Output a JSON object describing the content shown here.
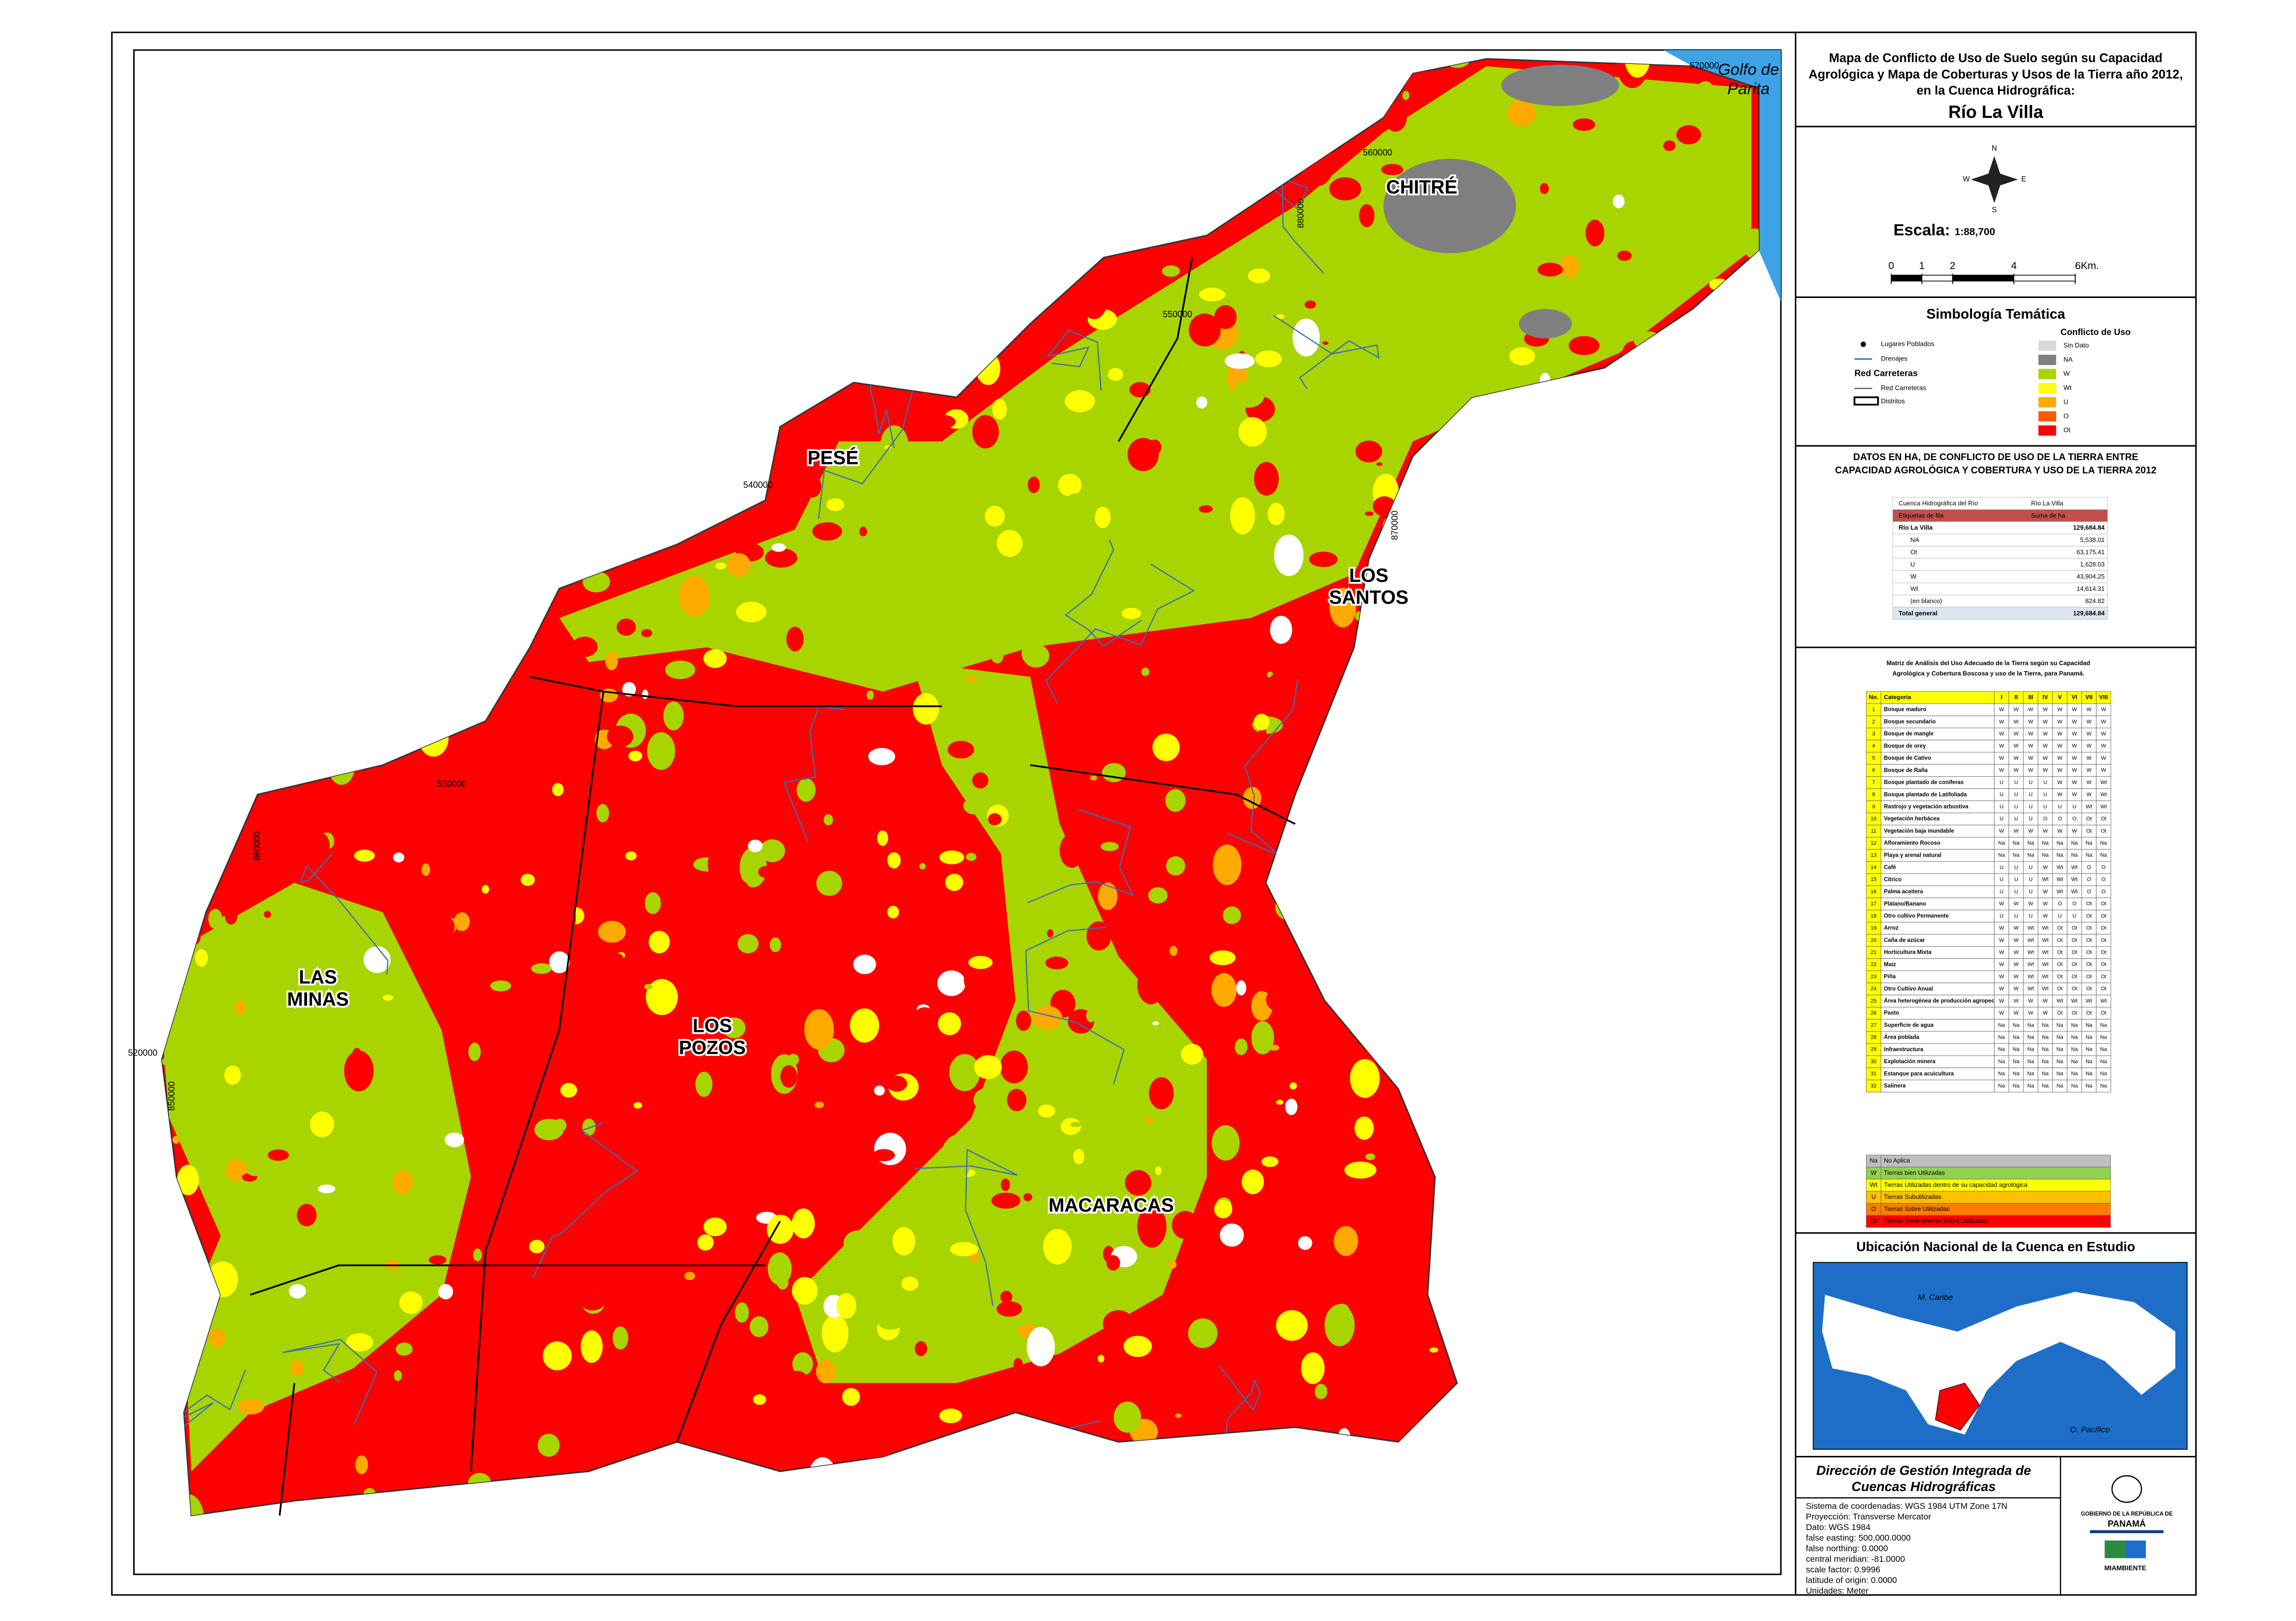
{
  "header": {
    "title_lines": [
      "Mapa de Conflicto de Uso de Suelo según su Capacidad",
      "Agrológica y Mapa de Coberturas y Usos de la Tierra año 2012,",
      "en la Cuenca Hidrográfica:"
    ],
    "basin": "Río La Villa"
  },
  "compass": {
    "n": "N",
    "s": "S",
    "e": "E",
    "w": "W"
  },
  "scale": {
    "label": "Escala:",
    "ratio": "1:88,700",
    "ticks": [
      0,
      1,
      2,
      4,
      {
        "value": 6,
        "label": "6Km."
      }
    ]
  },
  "legend": {
    "title": "Simbología Temática",
    "items": [
      "Lugares Poblados",
      "Drenajes",
      "Red Carreteras",
      "Red Carreteras",
      "Distritos"
    ],
    "conflict_title": "Conflicto de Uso",
    "conflict": [
      {
        "label": "Sin Dato",
        "color": "#d9d9d9"
      },
      {
        "label": "NA",
        "color": "#7f7f7f"
      },
      {
        "label": "W",
        "color": "#a8d400"
      },
      {
        "label": "Wt",
        "color": "#ffff00"
      },
      {
        "label": "U",
        "color": "#ffaa00"
      },
      {
        "label": "O",
        "color": "#ff5a00"
      },
      {
        "label": "Ot",
        "color": "#ff0000"
      }
    ]
  },
  "table": {
    "title_lines": [
      "DATOS EN HA, DE CONFLICTO DE USO DE LA TIERRA ENTRE",
      "CAPACIDAD AGROLÓGICA Y COBERTURA  Y USO DE LA TIERRA 2012"
    ],
    "rows": [
      [
        "Cuenca Hidrográfica del Río",
        "Río La Villa"
      ],
      [
        "Etiquetas de fila",
        "Suma de ha"
      ],
      [
        "Río La Villa",
        "129,684.84"
      ],
      [
        "NA",
        "5,538.01"
      ],
      [
        "Ot",
        "63,175.41"
      ],
      [
        "U",
        "1,628.03"
      ],
      [
        "W",
        "43,904.25"
      ],
      [
        "Wt",
        "14,614.31"
      ],
      [
        "(en blanco)",
        "824.82"
      ],
      [
        "Total general",
        "129,684.84"
      ]
    ]
  },
  "matrix": {
    "title_lines": [
      "Matriz de Análisis del Uso Adecuado de la Tierra según su Capacidad",
      "Agrológica y Cobertura Boscosa y uso de la Tierra, para Panamá."
    ],
    "header": [
      "No.",
      "Categoría",
      "I",
      "II",
      "III",
      "IV",
      "V",
      "VI",
      "VII",
      "VIII"
    ],
    "rows": [
      [
        1,
        "Bosque maduro",
        "W",
        "W",
        "W",
        "W",
        "W",
        "W",
        "W",
        "W"
      ],
      [
        2,
        "Bosque secundario",
        "W",
        "W",
        "W",
        "W",
        "W",
        "W",
        "W",
        "W"
      ],
      [
        3,
        "Bosque de mangle",
        "W",
        "W",
        "W",
        "W",
        "W",
        "W",
        "W",
        "W"
      ],
      [
        4,
        "Bosque de orey",
        "W",
        "W",
        "W",
        "W",
        "W",
        "W",
        "W",
        "W"
      ],
      [
        5,
        "Bosque de Cativo",
        "W",
        "W",
        "W",
        "W",
        "W",
        "W",
        "W",
        "W"
      ],
      [
        6,
        "Bosque de Raña",
        "W",
        "W",
        "W",
        "W",
        "W",
        "W",
        "W",
        "W"
      ],
      [
        7,
        "Bosque plantado de coníferas",
        "U",
        "U",
        "U",
        "U",
        "W",
        "W",
        "W",
        "Wt"
      ],
      [
        8,
        "Bosque plantado de Latifoliada",
        "U",
        "U",
        "U",
        "U",
        "W",
        "W",
        "W",
        "Wt"
      ],
      [
        9,
        "Rastrojo y vegetación arbustiva",
        "U",
        "U",
        "U",
        "U",
        "U",
        "U",
        "Wt",
        "Wt"
      ],
      [
        10,
        "Vegetación herbácea",
        "U",
        "U",
        "U",
        "O",
        "O",
        "O",
        "Ot",
        "Ot"
      ],
      [
        11,
        "Vegetación baja inundable",
        "W",
        "W",
        "W",
        "W",
        "W",
        "W",
        "Ot",
        "Ot"
      ],
      [
        12,
        "Afloramiento Rocoso",
        "Na",
        "Na",
        "Na",
        "Na",
        "Na",
        "Na",
        "Na",
        "Na"
      ],
      [
        13,
        "Playa y arenal natural",
        "Na",
        "Na",
        "Na",
        "Na",
        "Na",
        "Na",
        "Na",
        "Na"
      ],
      [
        14,
        "Café",
        "U",
        "U",
        "U",
        "W",
        "Wt",
        "Wt",
        "O",
        "O"
      ],
      [
        15,
        "Cítrico",
        "U",
        "U",
        "U",
        "Wt",
        "Wt",
        "Wt",
        "O",
        "O"
      ],
      [
        16,
        "Palma aceitera",
        "U",
        "U",
        "U",
        "W",
        "Wt",
        "Wt",
        "O",
        "O"
      ],
      [
        17,
        "Plátano/Banano",
        "W",
        "W",
        "W",
        "W",
        "O",
        "O",
        "Ot",
        "Ot"
      ],
      [
        18,
        "Otro cultivo Permanente",
        "U",
        "U",
        "U",
        "W",
        "U",
        "U",
        "Ot",
        "Ot"
      ],
      [
        19,
        "Arroz",
        "W",
        "W",
        "Wt",
        "Wt",
        "Ot",
        "Ot",
        "Ot",
        "Ot"
      ],
      [
        20,
        "Caña de azúcar",
        "W",
        "W",
        "Wt",
        "Wt",
        "Ot",
        "Ot",
        "Ot",
        "Ot"
      ],
      [
        21,
        "Horticultura Mixta",
        "W",
        "W",
        "Wt",
        "Wt",
        "Ot",
        "Ot",
        "Ot",
        "Ot"
      ],
      [
        22,
        "Maíz",
        "W",
        "W",
        "Wt",
        "Wt",
        "Ot",
        "Ot",
        "Ot",
        "Ot"
      ],
      [
        23,
        "Piña",
        "W",
        "W",
        "Wt",
        "Wt",
        "Ot",
        "Ot",
        "Ot",
        "Ot"
      ],
      [
        24,
        "Otro Cultivo Anual",
        "W",
        "W",
        "Wt",
        "Wt",
        "Ot",
        "Ot",
        "Ot",
        "Ot"
      ],
      [
        25,
        "Área heterogénea de producción agropecuaria",
        "W",
        "W",
        "W",
        "W",
        "Wt",
        "Wt",
        "Wt",
        "Wt"
      ],
      [
        26,
        "Pasto",
        "W",
        "W",
        "W",
        "W",
        "Ot",
        "Ot",
        "Ot",
        "Ot"
      ],
      [
        27,
        "Superficie de agua",
        "Na",
        "Na",
        "Na",
        "Na",
        "Na",
        "Na",
        "Na",
        "Na"
      ],
      [
        28,
        "Área poblada",
        "Na",
        "Na",
        "Na",
        "Na",
        "Na",
        "Na",
        "Na",
        "Na"
      ],
      [
        29,
        "Infraestructura",
        "Na",
        "Na",
        "Na",
        "Na",
        "Na",
        "Na",
        "Na",
        "Na"
      ],
      [
        30,
        "Explotación minera",
        "Na",
        "Na",
        "Na",
        "Na",
        "Na",
        "Na",
        "Na",
        "Na"
      ],
      [
        31,
        "Estanque para acuicultura",
        "Na",
        "Na",
        "Na",
        "Na",
        "Na",
        "Na",
        "Na",
        "Na"
      ],
      [
        32,
        "Salinera",
        "Na",
        "Na",
        "Na",
        "Na",
        "Na",
        "Na",
        "Na",
        "Na"
      ]
    ],
    "key": [
      {
        "code": "Na",
        "label": "No Aplica",
        "color": "#bfbfbf"
      },
      {
        "code": "W",
        "label": "Tierras bien Utilizadas",
        "color": "#92d050"
      },
      {
        "code": "Wt",
        "label": "Tierras Utilizadas dentro de su capacidad agrológica",
        "color": "#ffff00"
      },
      {
        "code": "U",
        "label": "Tierras Subutilizadas",
        "color": "#ffc000"
      },
      {
        "code": "O",
        "label": "Tierras Sobre Utilizadas",
        "color": "#ff7c00"
      },
      {
        "code": "Ot",
        "label": "Tierras Severamente Sobre Utilizadas",
        "color": "#ff0000"
      }
    ]
  },
  "location": {
    "title": "Ubicación Nacional de la Cuenca en Estudio",
    "labels": [
      "M. Caribe",
      "O. Pacífico"
    ]
  },
  "footer": {
    "agency_lines": [
      "Dirección de Gestión Integrada de",
      "Cuencas Hidrográficas"
    ],
    "projection": [
      "Sistema de coordenadas: WGS 1984 UTM Zone 17N",
      "Proyección: Transverse Mercator",
      "Dato: WGS 1984",
      "false easting: 500,000.0000",
      "false northing: 0.0000",
      "central meridian: -81.0000",
      "scale factor: 0.9996",
      "latitude of origin: 0.0000",
      "Unidades: Meter"
    ],
    "logos": [
      "GOBIERNO DE LA REPÚBLICA DE",
      "PANAMÁ",
      "MIAMBIENTE"
    ]
  },
  "map": {
    "places": [
      [
        "CHITRÉ"
      ],
      [
        "PESÉ"
      ],
      [
        "LOS",
        "SANTOS"
      ],
      [
        "LAS",
        "MINAS"
      ],
      [
        "LOS",
        "POZOS"
      ],
      [
        "MACARACAS"
      ]
    ],
    "water": [
      "Golfo de",
      "Parita"
    ],
    "coords": [
      "570000",
      "560000",
      "550000",
      "540000",
      "530000",
      "520000",
      "880000",
      "870000",
      "860000",
      "850000"
    ]
  }
}
